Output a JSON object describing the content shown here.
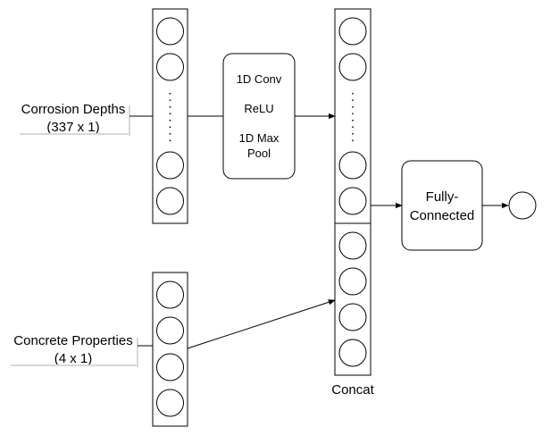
{
  "inputs": {
    "corrosion": {
      "line1": "Corrosion Depths",
      "line2": "(337 x 1)"
    },
    "concrete": {
      "line1": "Concrete Properties",
      "line2": "(4 x 1)"
    }
  },
  "conv_block": {
    "line1": "1D Conv",
    "line2": "ReLU",
    "line3": "1D Max",
    "line4": "Pool"
  },
  "fc_block": {
    "line1": "Fully-",
    "line2": "Connected"
  },
  "concat": {
    "label": "Concat"
  }
}
